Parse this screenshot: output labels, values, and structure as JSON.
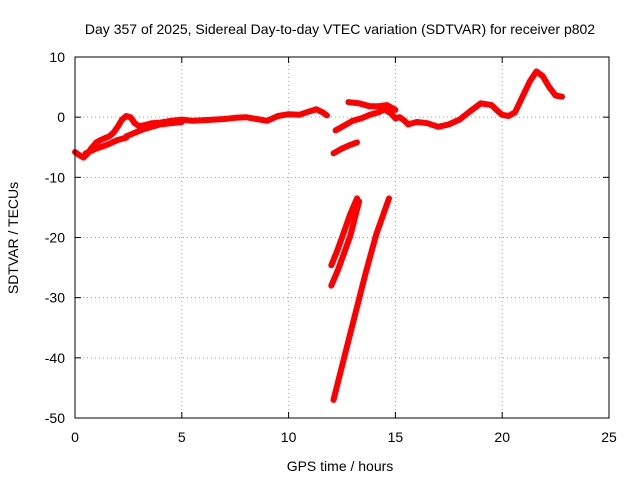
{
  "chart_data": {
    "type": "line",
    "title": "Day 357 of 2025, Sidereal Day-to-day VTEC variation (SDTVAR) for receiver p802",
    "xlabel": "GPS time / hours",
    "ylabel": "SDTVAR / TECUs",
    "xlim": [
      0,
      25
    ],
    "ylim": [
      -50,
      10
    ],
    "xticks": [
      0,
      5,
      10,
      15,
      20,
      25
    ],
    "yticks": [
      -50,
      -40,
      -30,
      -20,
      -10,
      0,
      10
    ],
    "xtick_labels": [
      "0",
      "5",
      "10",
      "15",
      "20",
      "25"
    ],
    "ytick_labels": [
      "-50",
      "-40",
      "-30",
      "-20",
      "-10",
      "0",
      "10"
    ],
    "grid": true,
    "legend": "none",
    "series_color": "#ff0000",
    "series": [
      {
        "points": [
          [
            0.0,
            -5.8
          ],
          [
            0.2,
            -6.3
          ],
          [
            0.4,
            -6.7
          ],
          [
            0.6,
            -6.0
          ],
          [
            0.8,
            -5.0
          ],
          [
            1.0,
            -4.2
          ],
          [
            1.2,
            -3.8
          ],
          [
            1.4,
            -3.5
          ],
          [
            1.6,
            -3.2
          ],
          [
            1.8,
            -2.6
          ],
          [
            2.0,
            -1.6
          ],
          [
            2.2,
            -0.4
          ],
          [
            2.4,
            0.2
          ],
          [
            2.6,
            0.0
          ],
          [
            2.8,
            -1.0
          ],
          [
            3.0,
            -1.5
          ],
          [
            3.3,
            -1.3
          ],
          [
            3.6,
            -1.0
          ],
          [
            4.0,
            -0.9
          ],
          [
            4.5,
            -0.6
          ],
          [
            5.0,
            -0.4
          ],
          [
            5.5,
            -0.6
          ],
          [
            6.0,
            -0.5
          ],
          [
            6.5,
            -0.4
          ],
          [
            7.0,
            -0.3
          ],
          [
            7.5,
            -0.1
          ],
          [
            8.0,
            0.0
          ],
          [
            8.5,
            -0.3
          ],
          [
            9.0,
            -0.6
          ],
          [
            9.5,
            0.2
          ],
          [
            10.0,
            0.5
          ],
          [
            10.5,
            0.4
          ],
          [
            11.0,
            1.0
          ],
          [
            11.3,
            1.3
          ],
          [
            11.6,
            0.8
          ],
          [
            11.8,
            0.3
          ]
        ]
      },
      {
        "points": [
          [
            2.4,
            -3.2
          ],
          [
            2.8,
            -2.6
          ],
          [
            3.2,
            -2.0
          ],
          [
            3.6,
            -1.6
          ],
          [
            4.0,
            -1.2
          ],
          [
            4.5,
            -1.0
          ],
          [
            5.0,
            -0.8
          ]
        ]
      },
      {
        "points": [
          [
            0.5,
            -6.0
          ],
          [
            1.0,
            -5.2
          ],
          [
            1.5,
            -4.6
          ],
          [
            2.0,
            -3.8
          ],
          [
            2.4,
            -3.4
          ]
        ]
      },
      {
        "points": [
          [
            12.1,
            -6.0
          ],
          [
            12.5,
            -5.2
          ],
          [
            12.9,
            -4.6
          ],
          [
            13.2,
            -4.2
          ]
        ]
      },
      {
        "points": [
          [
            12.2,
            -2.2
          ],
          [
            12.6,
            -1.4
          ],
          [
            13.0,
            -0.6
          ],
          [
            13.4,
            -0.2
          ],
          [
            13.8,
            0.4
          ],
          [
            14.2,
            0.8
          ],
          [
            14.5,
            1.3
          ],
          [
            14.8,
            0.6
          ],
          [
            15.0,
            -0.2
          ],
          [
            15.2,
            0.0
          ],
          [
            15.4,
            -0.5
          ],
          [
            15.6,
            -1.2
          ]
        ]
      },
      {
        "points": [
          [
            12.8,
            2.5
          ],
          [
            13.3,
            2.3
          ],
          [
            13.8,
            1.8
          ],
          [
            14.2,
            1.8
          ],
          [
            14.6,
            2.0
          ],
          [
            15.0,
            1.2
          ]
        ]
      },
      {
        "points": [
          [
            15.6,
            -1.2
          ],
          [
            16.0,
            -0.8
          ],
          [
            16.5,
            -1.0
          ],
          [
            17.0,
            -1.6
          ],
          [
            17.5,
            -1.2
          ],
          [
            18.0,
            -0.4
          ],
          [
            18.5,
            1.0
          ],
          [
            19.0,
            2.3
          ],
          [
            19.5,
            2.0
          ],
          [
            19.8,
            1.0
          ],
          [
            20.0,
            0.4
          ],
          [
            20.3,
            0.2
          ],
          [
            20.6,
            0.8
          ],
          [
            21.0,
            3.8
          ],
          [
            21.3,
            6.0
          ],
          [
            21.6,
            7.6
          ],
          [
            21.9,
            6.8
          ],
          [
            22.2,
            5.0
          ],
          [
            22.5,
            3.6
          ],
          [
            22.8,
            3.4
          ]
        ]
      },
      {
        "points": [
          [
            12.0,
            -24.6
          ],
          [
            12.3,
            -22.0
          ],
          [
            12.6,
            -19.0
          ],
          [
            12.9,
            -16.0
          ],
          [
            13.2,
            -13.5
          ]
        ]
      },
      {
        "points": [
          [
            12.0,
            -28.0
          ],
          [
            12.3,
            -25.5
          ],
          [
            12.6,
            -22.6
          ],
          [
            12.9,
            -19.6
          ],
          [
            13.3,
            -14.0
          ]
        ]
      },
      {
        "points": [
          [
            12.1,
            -47.0
          ],
          [
            12.6,
            -40.0
          ],
          [
            13.1,
            -33.0
          ],
          [
            13.6,
            -26.0
          ],
          [
            14.1,
            -19.5
          ],
          [
            14.7,
            -13.5
          ]
        ]
      }
    ]
  }
}
